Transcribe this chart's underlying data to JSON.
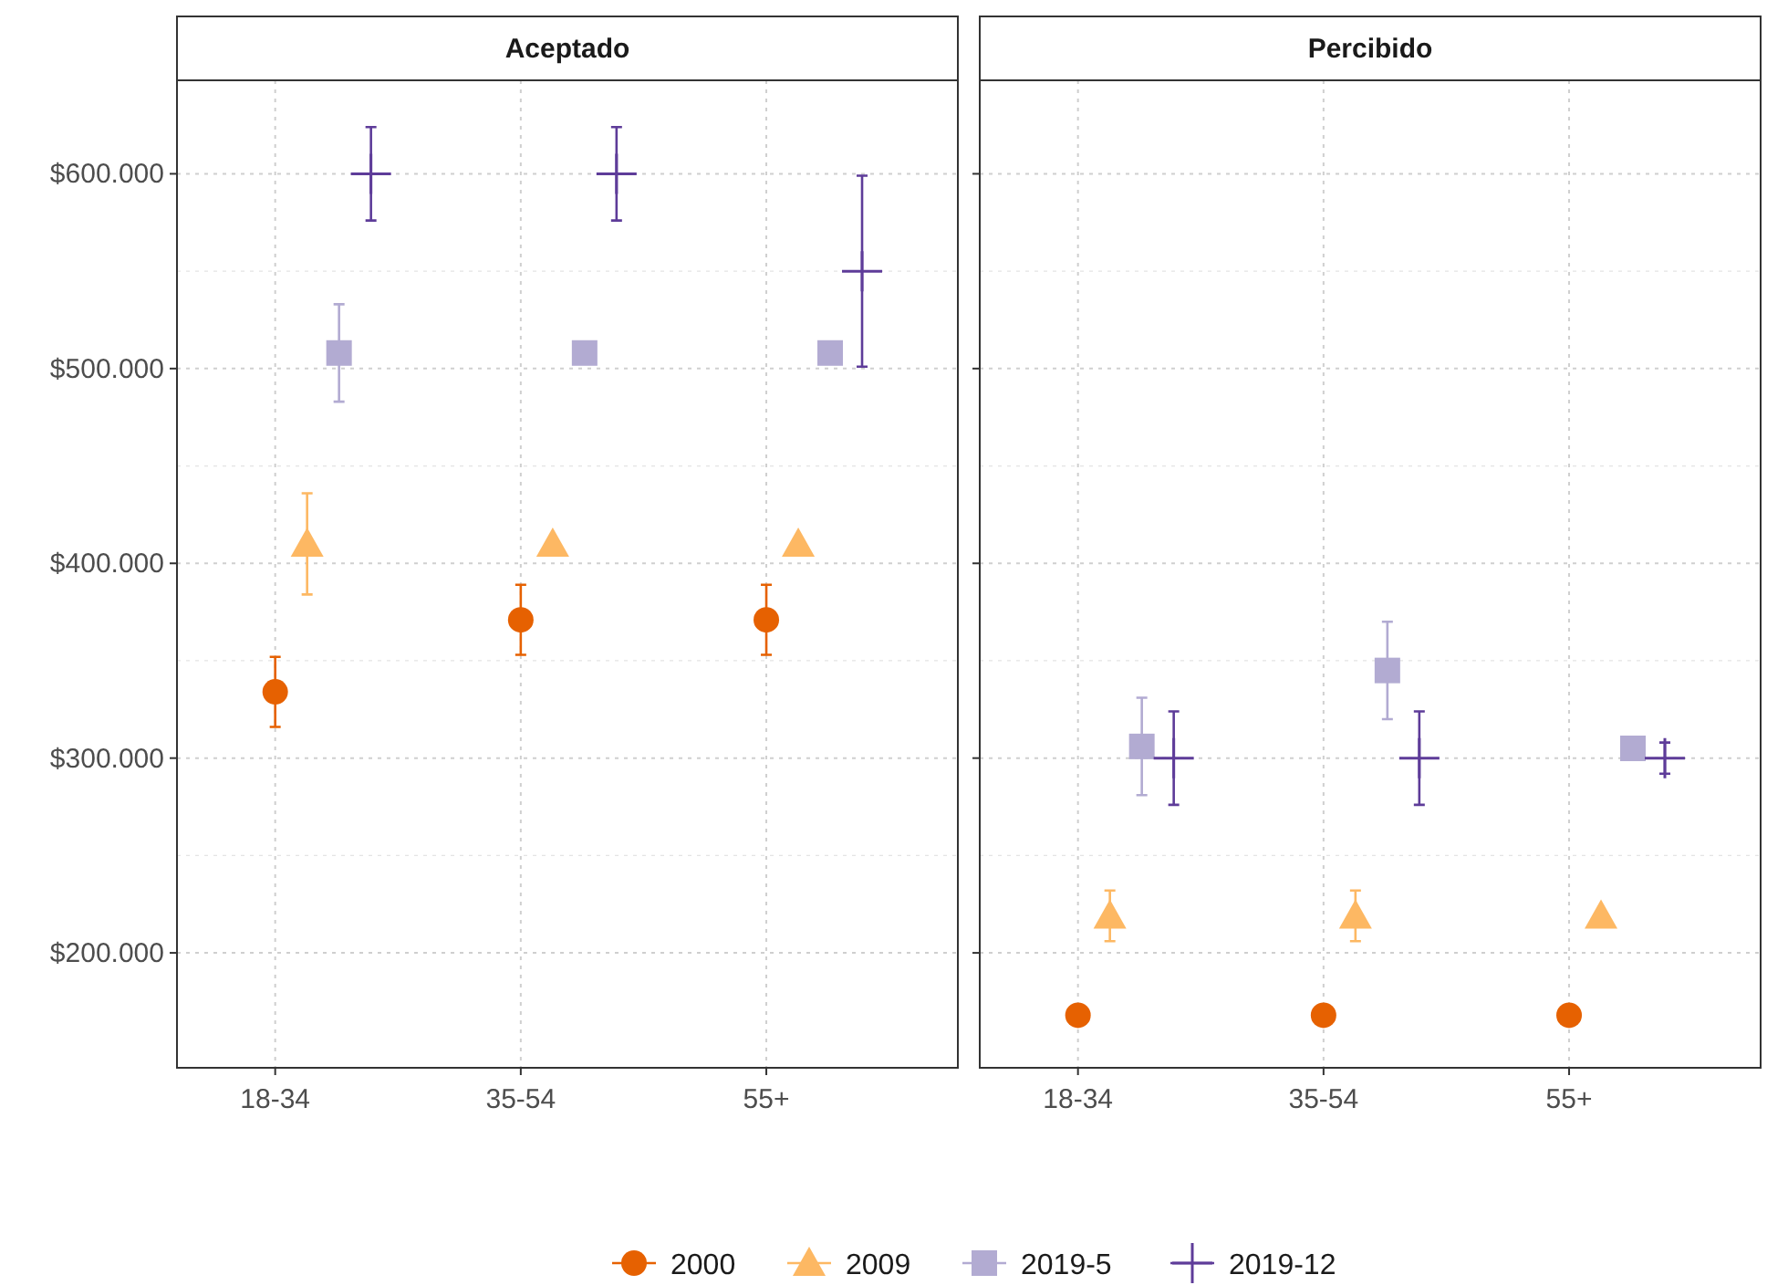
{
  "chart_data": [
    {
      "type": "scatter",
      "title": "Aceptado",
      "categories": [
        "18-34",
        "35-54",
        "55+"
      ],
      "ylim": [
        141000,
        648000
      ],
      "yticks": [
        {
          "value": 200000,
          "label": "$200.000"
        },
        {
          "value": 300000,
          "label": "$300.000"
        },
        {
          "value": 400000,
          "label": "$400.000"
        },
        {
          "value": 500000,
          "label": "$500.000"
        },
        {
          "value": 600000,
          "label": "$600.000"
        }
      ],
      "grid": true,
      "legend": "bottom",
      "series": [
        {
          "name": "2000",
          "color": "#e66101",
          "marker": "circle",
          "values": [
            334000,
            371000,
            371000
          ],
          "errors": [
            18000,
            18000,
            18000
          ]
        },
        {
          "name": "2009",
          "color": "#fdb863",
          "marker": "triangle",
          "values": [
            410000,
            410000,
            410000
          ],
          "errors": [
            26000,
            null,
            null
          ]
        },
        {
          "name": "2019-5",
          "color": "#b2abd2",
          "marker": "square",
          "values": [
            508000,
            508000,
            508000
          ],
          "errors": [
            25000,
            null,
            null
          ]
        },
        {
          "name": "2019-12",
          "color": "#5e3c99",
          "marker": "cross",
          "values": [
            600000,
            600000,
            550000
          ],
          "errors": [
            24000,
            24000,
            49000
          ]
        }
      ]
    },
    {
      "type": "scatter",
      "title": "Percibido",
      "categories": [
        "18-34",
        "35-54",
        "55+"
      ],
      "ylim": [
        141000,
        648000
      ],
      "yticks": [
        {
          "value": 200000,
          "label": null
        },
        {
          "value": 300000,
          "label": null
        },
        {
          "value": 400000,
          "label": null
        },
        {
          "value": 500000,
          "label": null
        },
        {
          "value": 600000,
          "label": null
        }
      ],
      "grid": true,
      "tick_labels": "x",
      "series": [
        {
          "color": "#e66101",
          "marker": "circle",
          "values": [
            168000,
            168000,
            168000
          ]
        },
        {
          "color": "#fdb863",
          "marker": "triangle",
          "values": [
            219000,
            219000,
            219000
          ],
          "errors": [
            13000,
            13000,
            null
          ]
        },
        {
          "color": "#b2abd2",
          "marker": "square",
          "values": [
            306000,
            345000,
            305000
          ],
          "errors": [
            25000,
            25000,
            null
          ]
        },
        {
          "color": "#5e3c99",
          "marker": "cross",
          "values": [
            300000,
            300000,
            300000
          ],
          "errors": [
            24000,
            24000,
            8000
          ]
        }
      ]
    }
  ]
}
